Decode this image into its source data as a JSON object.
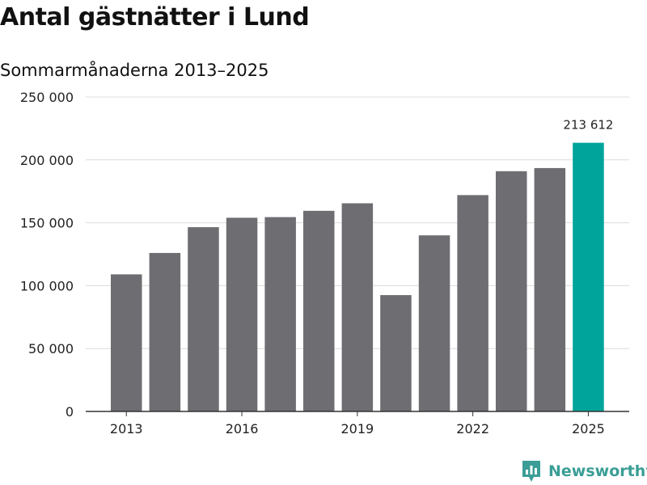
{
  "title": "Antal gästnätter i Lund",
  "subtitle": "Sommarmånaderna 2013–2025",
  "brand": {
    "name": "Newsworthy",
    "color": "#3a9e96",
    "icon": "bar-chart-pin-icon"
  },
  "colors": {
    "bar": "#6e6d72",
    "highlight": "#00a49a",
    "grid": "#dcdcdc",
    "axis": "#333333",
    "text": "#222222"
  },
  "chart_data": {
    "type": "bar",
    "title": "Antal gästnätter i Lund",
    "subtitle": "Sommarmånaderna 2013–2025",
    "xlabel": "",
    "ylabel": "",
    "categories": [
      "2013",
      "2014",
      "2015",
      "2016",
      "2017",
      "2018",
      "2019",
      "2020",
      "2021",
      "2022",
      "2023",
      "2024",
      "2025"
    ],
    "x_tick_labels": [
      "2013",
      "2016",
      "2019",
      "2022",
      "2025"
    ],
    "values": [
      109000,
      126000,
      146500,
      154000,
      154500,
      159500,
      165500,
      92500,
      140000,
      172000,
      191000,
      193500,
      213612
    ],
    "highlight_index": 12,
    "annotation": "213 612",
    "ylim": [
      0,
      250000
    ],
    "y_ticks": [
      0,
      50000,
      100000,
      150000,
      200000,
      250000
    ],
    "y_tick_labels": [
      "0",
      "50 000",
      "100 000",
      "150 000",
      "200 000",
      "250 000"
    ],
    "grid": true,
    "legend": "none"
  }
}
